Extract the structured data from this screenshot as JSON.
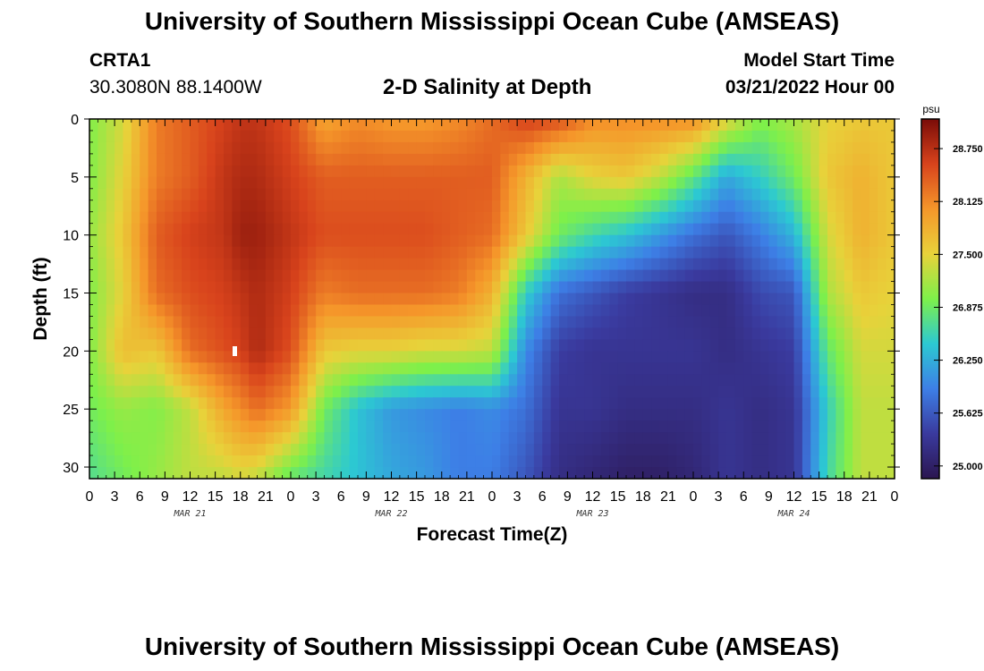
{
  "header": {
    "title": "University of Southern Mississippi Ocean Cube (AMSEAS)",
    "station": "CRTA1",
    "coordinates": "30.3080N  88.1400W",
    "subtitle": "2-D Salinity at Depth",
    "model_start_label": "Model Start Time",
    "model_start_value": "03/21/2022 Hour 00"
  },
  "footer": {
    "title": "University of Southern Mississippi Ocean Cube (AMSEAS)"
  },
  "chart_data": {
    "type": "heatmap",
    "title": "2-D Salinity at Depth",
    "xlabel": "Forecast Time(Z)",
    "ylabel": "Depth (ft)",
    "x_range_hours": [
      0,
      96
    ],
    "ylim": [
      0,
      31
    ],
    "y_inverted": true,
    "x_tick_labels": [
      "0",
      "3",
      "6",
      "9",
      "12",
      "15",
      "18",
      "21",
      "0",
      "3",
      "6",
      "9",
      "12",
      "15",
      "18",
      "21",
      "0",
      "3",
      "6",
      "9",
      "12",
      "15",
      "18",
      "21",
      "0",
      "3",
      "6",
      "9",
      "12",
      "15",
      "18",
      "21",
      "0"
    ],
    "y_ticks": [
      0,
      5,
      10,
      15,
      20,
      25,
      30
    ],
    "date_labels": [
      {
        "label": "MAR 21",
        "hour": 12
      },
      {
        "label": "MAR 22",
        "hour": 36
      },
      {
        "label": "MAR 23",
        "hour": 60
      },
      {
        "label": "MAR 24",
        "hour": 84
      }
    ],
    "colorbar": {
      "unit": "psu",
      "min": 24.85,
      "max": 29.1,
      "labels": [
        "28.750",
        "28.125",
        "27.500",
        "26.875",
        "26.250",
        "25.625",
        "25.000"
      ],
      "label_values": [
        28.75,
        28.125,
        27.5,
        26.875,
        26.25,
        25.625,
        25.0
      ],
      "colors": [
        "#2b1650",
        "#3a3a9e",
        "#3d7fe6",
        "#2cc9d2",
        "#7ef04a",
        "#e8d23a",
        "#f5962a",
        "#d8431c",
        "#7a0c08"
      ]
    },
    "depth_levels_ft": [
      0,
      5,
      10,
      15,
      20,
      25,
      31
    ],
    "time_knots_hours": [
      0,
      4,
      8,
      12,
      16,
      18,
      20,
      24,
      28,
      32,
      36,
      40,
      44,
      48,
      52,
      56,
      60,
      64,
      68,
      72,
      76,
      80,
      84,
      88,
      92,
      96
    ],
    "salinity_psu": [
      [
        27.0,
        27.4,
        28.2,
        28.4,
        28.6,
        28.7,
        28.7,
        28.5,
        27.9,
        28.1,
        28.0,
        28.0,
        28.1,
        28.3,
        28.6,
        28.5,
        28.1,
        28.1,
        28.1,
        28.1,
        27.5,
        27.0,
        27.2,
        27.5,
        27.6,
        27.6
      ],
      [
        27.0,
        27.5,
        28.2,
        28.4,
        28.7,
        28.8,
        28.8,
        28.6,
        28.4,
        28.4,
        28.4,
        28.4,
        28.4,
        28.4,
        27.8,
        27.2,
        27.5,
        27.6,
        27.3,
        26.8,
        26.2,
        26.5,
        26.9,
        27.6,
        27.8,
        27.6
      ],
      [
        27.1,
        27.6,
        28.4,
        28.6,
        28.7,
        28.9,
        28.9,
        28.7,
        28.5,
        28.5,
        28.5,
        28.5,
        28.4,
        28.3,
        27.6,
        26.9,
        26.6,
        26.4,
        26.1,
        25.8,
        25.6,
        25.9,
        26.3,
        27.4,
        27.8,
        27.6
      ],
      [
        27.0,
        27.5,
        28.3,
        28.5,
        28.6,
        28.7,
        28.8,
        28.6,
        28.2,
        28.3,
        28.3,
        28.3,
        28.2,
        27.8,
        26.5,
        25.8,
        25.6,
        25.4,
        25.3,
        25.2,
        25.2,
        25.5,
        25.6,
        27.2,
        27.6,
        27.5
      ],
      [
        27.0,
        27.7,
        27.6,
        28.3,
        28.5,
        28.6,
        28.8,
        28.5,
        27.6,
        27.5,
        27.5,
        27.4,
        27.4,
        27.3,
        26.0,
        25.4,
        25.3,
        25.3,
        25.3,
        25.3,
        25.2,
        25.3,
        25.4,
        26.8,
        27.4,
        27.4
      ],
      [
        26.9,
        27.1,
        27.0,
        27.3,
        27.9,
        28.1,
        28.3,
        28.0,
        26.9,
        26.4,
        26.1,
        26.0,
        25.9,
        26.0,
        25.8,
        25.3,
        25.3,
        25.2,
        25.2,
        25.2,
        25.3,
        25.2,
        25.3,
        26.5,
        27.3,
        27.3
      ],
      [
        26.7,
        26.9,
        27.1,
        27.3,
        27.3,
        27.4,
        27.3,
        26.8,
        26.6,
        26.4,
        26.2,
        26.1,
        25.9,
        25.9,
        25.6,
        25.2,
        25.1,
        25.0,
        25.0,
        25.1,
        25.3,
        25.2,
        25.3,
        26.6,
        27.3,
        27.3
      ]
    ]
  }
}
